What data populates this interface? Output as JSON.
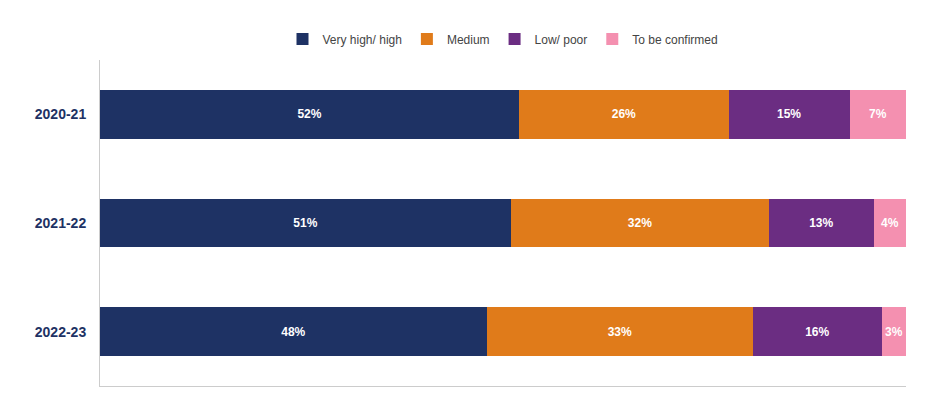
{
  "chart_data": {
    "type": "bar",
    "orientation": "horizontal",
    "stacked": true,
    "data_labels": true,
    "tick_labels": "y",
    "legend": "top",
    "grid": false,
    "categories": [
      "2020-21",
      "2021-22",
      "2022-23"
    ],
    "xlim": [
      0,
      100
    ],
    "series": [
      {
        "name": "Very high/ high",
        "color": "#1e3264",
        "values": [
          52,
          51,
          48
        ],
        "value_labels": [
          "52%",
          "51%",
          "48%"
        ]
      },
      {
        "name": "Medium",
        "color": "#e07b1a",
        "values": [
          26,
          32,
          33
        ],
        "value_labels": [
          "26%",
          "32%",
          "33%"
        ]
      },
      {
        "name": "Low/ poor",
        "color": "#6b2d82",
        "values": [
          15,
          13,
          16
        ],
        "value_labels": [
          "15%",
          "13%",
          "16%"
        ]
      },
      {
        "name": "To be confirmed",
        "color": "#f490b0",
        "values": [
          7,
          4,
          3
        ],
        "value_labels": [
          "7%",
          "4%",
          "3%"
        ]
      }
    ]
  }
}
